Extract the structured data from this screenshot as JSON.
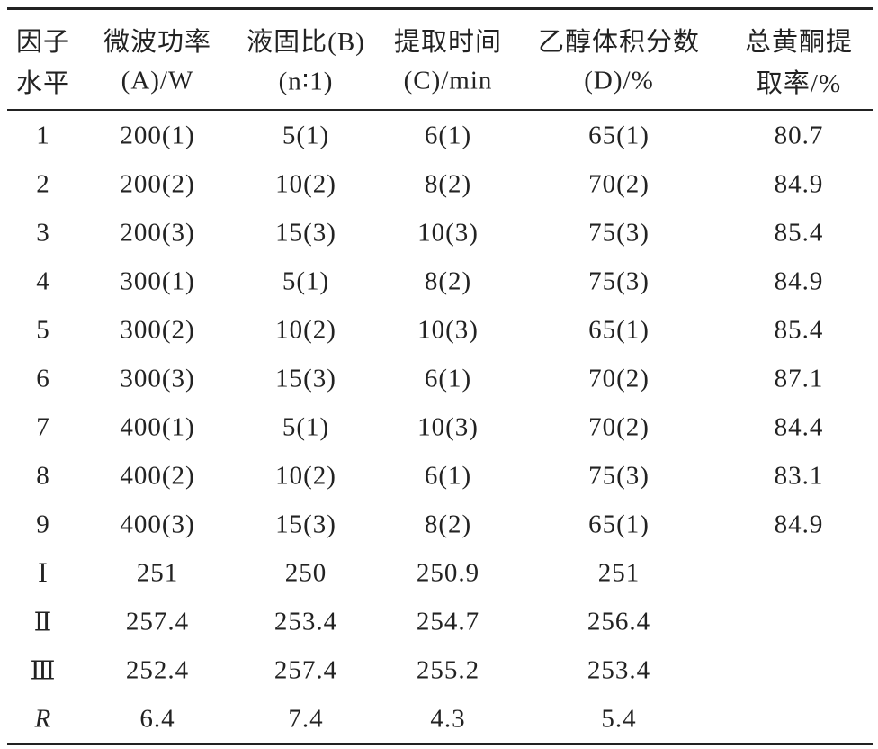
{
  "table": {
    "header": [
      [
        "因子",
        "水平"
      ],
      [
        "微波功率",
        "(A)/W"
      ],
      [
        "液固比(B)",
        "(n∶1)"
      ],
      [
        "提取时间",
        "(C)/min"
      ],
      [
        "乙醇体积分数",
        "(D)/%"
      ],
      [
        "总黄酮提",
        "取率/%"
      ]
    ],
    "rows": [
      [
        "1",
        "200(1)",
        "5(1)",
        "6(1)",
        "65(1)",
        "80.7"
      ],
      [
        "2",
        "200(2)",
        "10(2)",
        "8(2)",
        "70(2)",
        "84.9"
      ],
      [
        "3",
        "200(3)",
        "15(3)",
        "10(3)",
        "75(3)",
        "85.4"
      ],
      [
        "4",
        "300(1)",
        "5(1)",
        "8(2)",
        "75(3)",
        "84.9"
      ],
      [
        "5",
        "300(2)",
        "10(2)",
        "10(3)",
        "65(1)",
        "85.4"
      ],
      [
        "6",
        "300(3)",
        "15(3)",
        "6(1)",
        "70(2)",
        "87.1"
      ],
      [
        "7",
        "400(1)",
        "5(1)",
        "10(3)",
        "70(2)",
        "84.4"
      ],
      [
        "8",
        "400(2)",
        "10(2)",
        "6(1)",
        "75(3)",
        "83.1"
      ],
      [
        "9",
        "400(3)",
        "15(3)",
        "8(2)",
        "65(1)",
        "84.9"
      ],
      [
        "Ⅰ",
        "251",
        "250",
        "250.9",
        "251"
      ],
      [
        "Ⅱ",
        "257.4",
        "253.4",
        "254.7",
        "256.4"
      ],
      [
        "Ⅲ",
        "252.4",
        "257.4",
        "255.2",
        "253.4"
      ],
      [
        "R",
        "6.4",
        "7.4",
        "4.3",
        "5.4"
      ]
    ]
  }
}
